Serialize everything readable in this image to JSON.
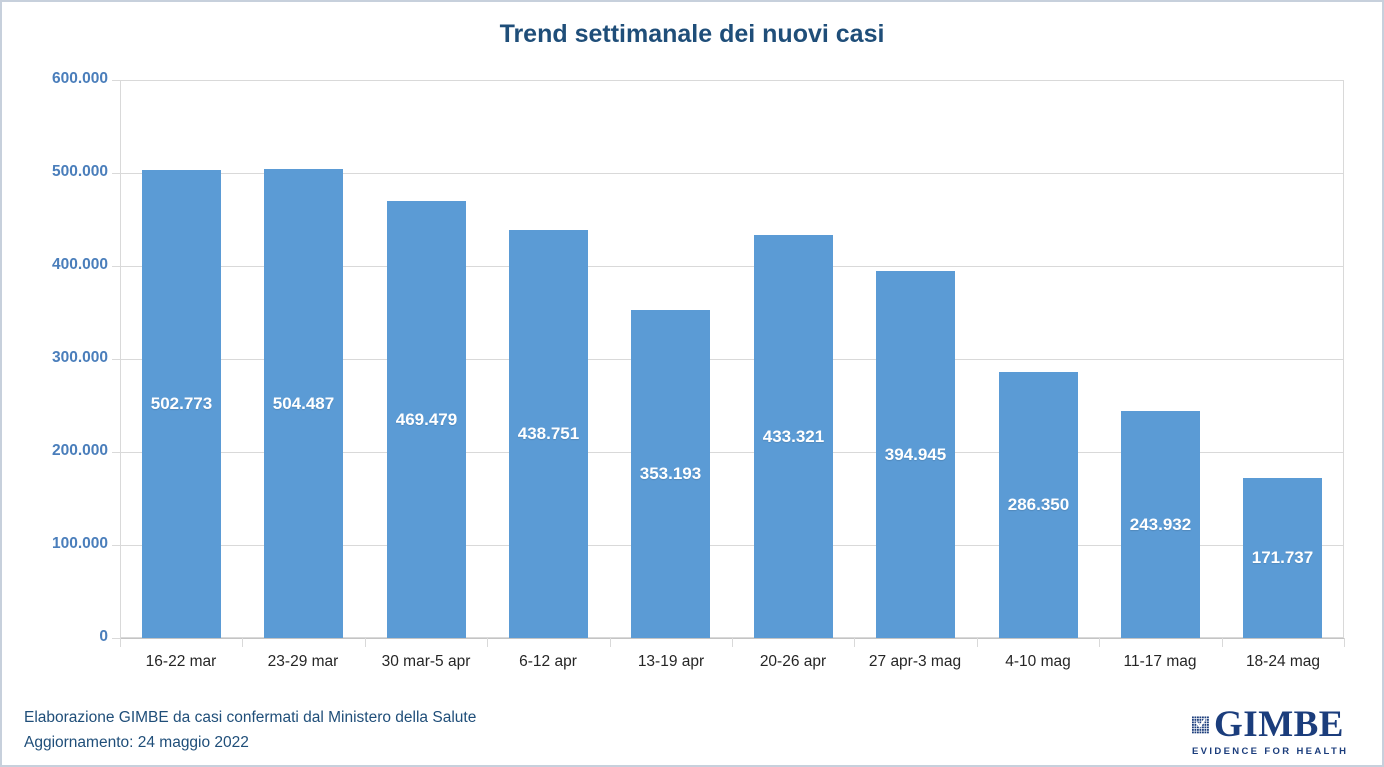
{
  "title": "Trend settimanale dei nuovi casi",
  "chart_data": {
    "type": "bar",
    "title": "Trend settimanale dei nuovi casi",
    "categories": [
      "16-22 mar",
      "23-29 mar",
      "30 mar-5 apr",
      "6-12 apr",
      "13-19 apr",
      "20-26 apr",
      "27 apr-3 mag",
      "4-10 mag",
      "11-17 mag",
      "18-24 mag"
    ],
    "values": [
      502773,
      504487,
      469479,
      438751,
      353193,
      433321,
      394945,
      286350,
      243932,
      171737
    ],
    "bar_labels": [
      "502.773",
      "504.487",
      "469.479",
      "438.751",
      "353.193",
      "433.321",
      "394.945",
      "286.350",
      "243.932",
      "171.737"
    ],
    "y_tick_values": [
      0,
      100000,
      200000,
      300000,
      400000,
      500000,
      600000
    ],
    "y_tick_labels": [
      "0",
      "100.000",
      "200.000",
      "300.000",
      "400.000",
      "500.000",
      "600.000"
    ],
    "ylim": [
      0,
      600000
    ],
    "xlabel": "",
    "ylabel": "",
    "grid": true,
    "legend": false,
    "bar_color": "#5B9BD5",
    "bar_label_color": "#FFFFFF"
  },
  "colors": {
    "title_text": "#1F4E79",
    "axis_label_text": "#4A7EBB",
    "category_text": "#262626",
    "gridline": "#D9D9D9",
    "footer_text": "#1F4E79",
    "logo_navy": "#1B3D7C"
  },
  "footer": {
    "source_line": "Elaborazione GIMBE da casi confermati dal Ministero della Salute",
    "update_line": "Aggiornamento: 24 maggio 2022",
    "logo": {
      "name": "GIMBE",
      "tagline": "EVIDENCE FOR HEALTH"
    }
  }
}
